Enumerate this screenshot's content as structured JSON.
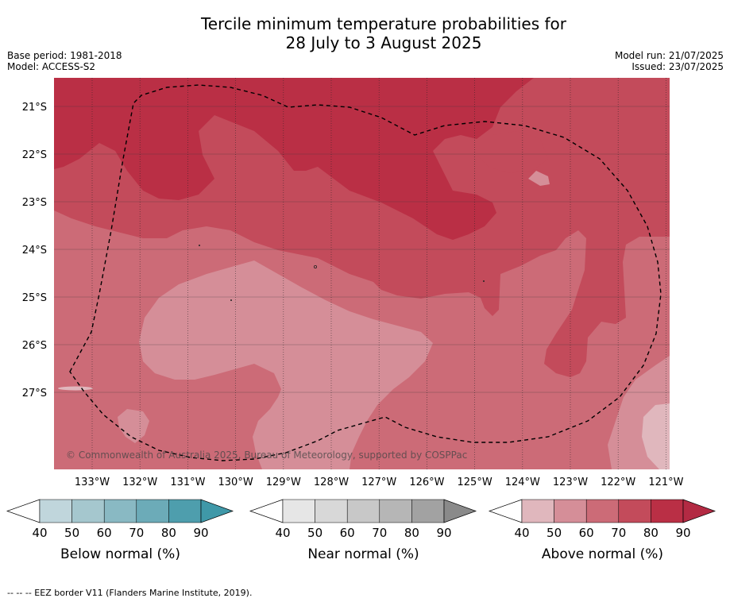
{
  "header": {
    "title_line1": "Tercile minimum temperature probabilities for",
    "title_line2": "28 July to 3 August 2025",
    "base_period": "Base period: 1981-2018",
    "model": "Model: ACCESS-S2",
    "model_run": "Model run: 21/07/2025",
    "issued": "Issued: 23/07/2025"
  },
  "map": {
    "copyright": "© Commonwealth of Australia 2025, Bureau of Meteorology, supported by COSPPac",
    "lat_labels": [
      "21°S",
      "22°S",
      "23°S",
      "24°S",
      "25°S",
      "26°S",
      "27°S"
    ],
    "lon_labels": [
      "133°W",
      "132°W",
      "131°W",
      "130°W",
      "129°W",
      "128°W",
      "127°W",
      "126°W",
      "125°W",
      "124°W",
      "123°W",
      "122°W",
      "121°W"
    ]
  },
  "legends": [
    {
      "label": "Below normal (%)",
      "ticks": [
        "40",
        "50",
        "60",
        "70",
        "80",
        "90"
      ],
      "colors": [
        "#c0d6dc",
        "#a5c7ce",
        "#89b9c3",
        "#6cabb8",
        "#4e9ead",
        "#3f98a8"
      ]
    },
    {
      "label": "Near normal (%)",
      "ticks": [
        "40",
        "50",
        "60",
        "70",
        "80",
        "90"
      ],
      "colors": [
        "#e6e6e6",
        "#d8d8d8",
        "#c8c8c8",
        "#b6b6b6",
        "#a2a2a2",
        "#8a8a8a"
      ]
    },
    {
      "label": "Above normal (%)",
      "ticks": [
        "40",
        "50",
        "60",
        "70",
        "80",
        "90"
      ],
      "colors": [
        "#e0b7bd",
        "#d58e98",
        "#cc6b77",
        "#c34b5b",
        "#ba2f45",
        "#b32a43"
      ]
    }
  ],
  "footer": {
    "eez_note": "--  --  -- EEZ border V11 (Flanders Marine Institute, 2019)."
  },
  "chart_data": {
    "type": "heatmap",
    "title": "Tercile minimum temperature probabilities for 28 July to 3 August 2025",
    "x_axis": "longitude",
    "y_axis": "latitude",
    "xlim": [
      "133.8°W",
      "120.9°W"
    ],
    "ylim": [
      "28.4°S",
      "20.6°S"
    ],
    "category_shown": "Above normal",
    "levels_percent": [
      40,
      50,
      60,
      70,
      80,
      90
    ],
    "overlay": "EEZ border (dashed)"
  }
}
